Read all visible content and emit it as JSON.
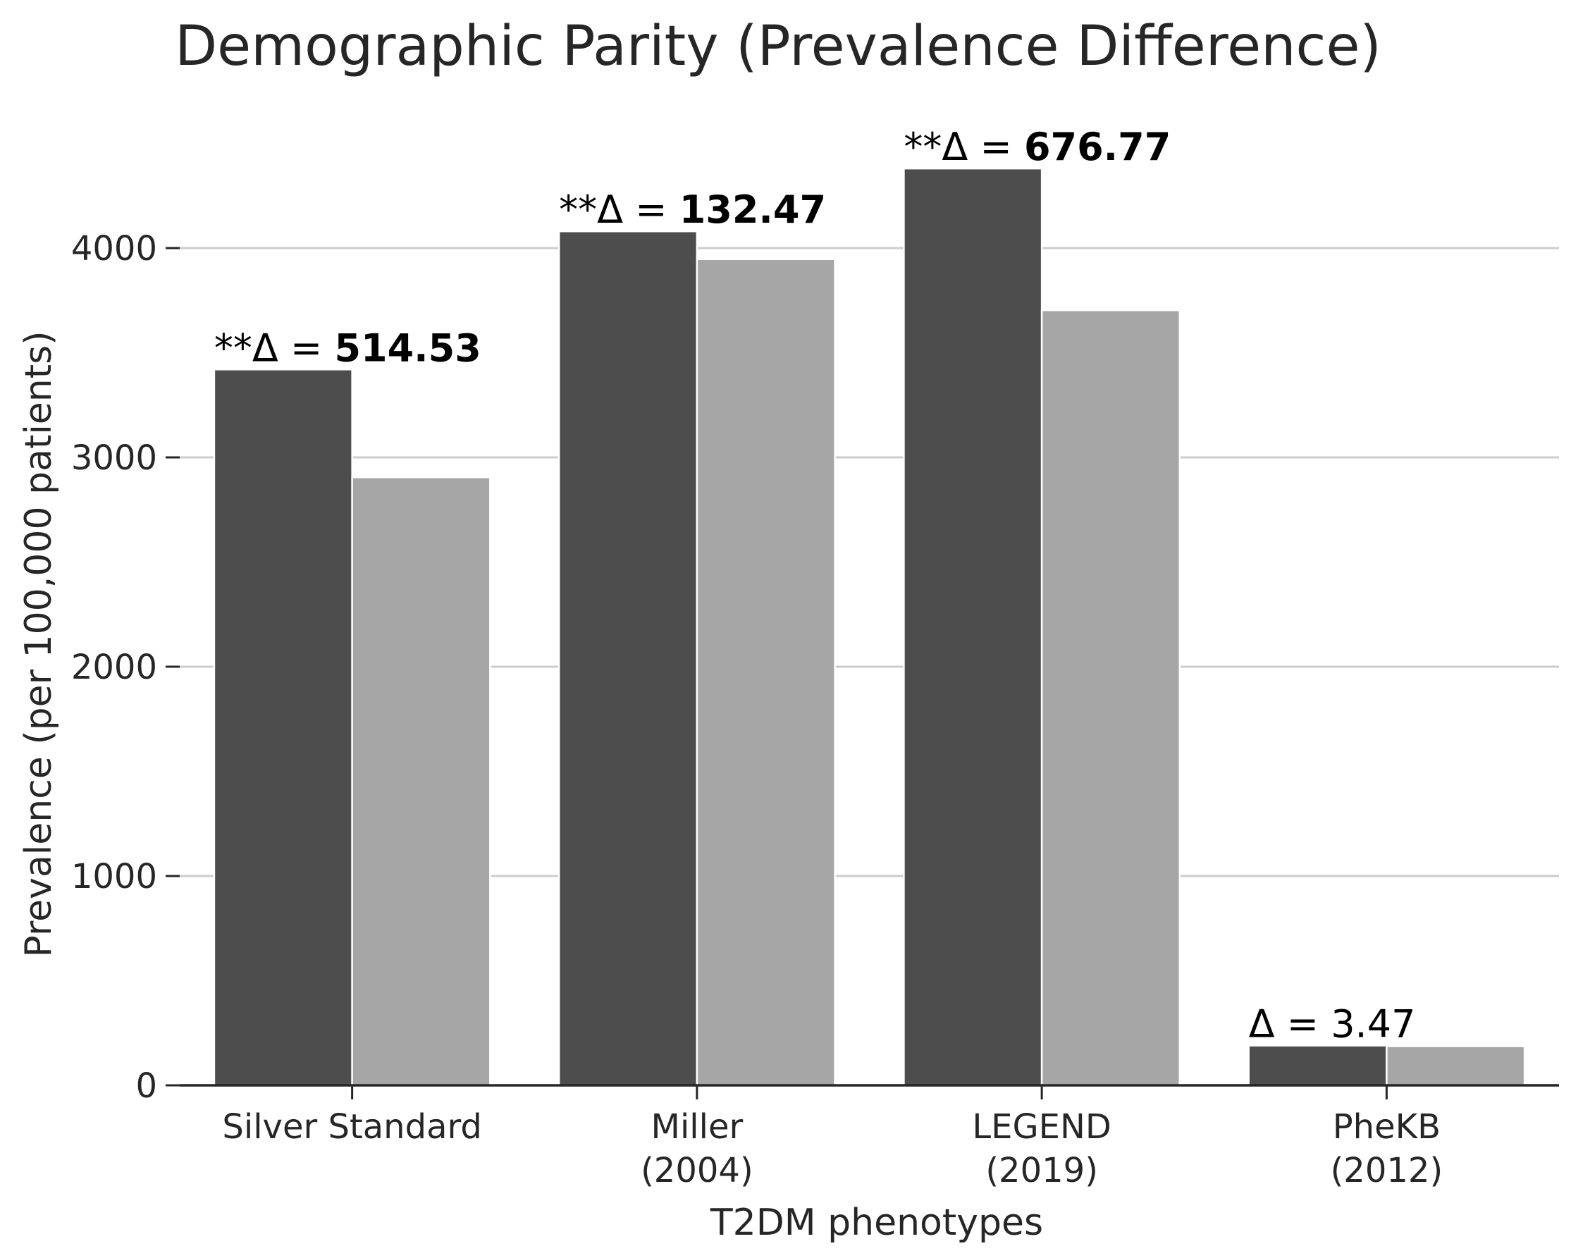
{
  "chart_data": {
    "type": "bar",
    "title": "Demographic Parity (Prevalence Difference)",
    "xlabel": "T2DM phenotypes",
    "ylabel": "Prevalence (per 100,000 patients)",
    "categories": [
      [
        "Silver Standard"
      ],
      [
        "Miller",
        "(2004)"
      ],
      [
        "LEGEND",
        "(2019)"
      ],
      [
        "PheKB",
        "(2012)"
      ]
    ],
    "series": [
      {
        "values": [
          3420,
          4080,
          4380,
          190
        ],
        "color": "#4d4d4d"
      },
      {
        "values": [
          2905,
          3947,
          3703,
          187
        ],
        "color": "#a6a6a6"
      }
    ],
    "ylim": [
      0,
      4500
    ],
    "yticks": [
      0,
      1000,
      2000,
      3000,
      4000
    ],
    "grid": "horizontal",
    "annotations": [
      {
        "prefix": "**Δ = ",
        "value": "514.53",
        "bold": true
      },
      {
        "prefix": "**Δ = ",
        "value": "132.47",
        "bold": true
      },
      {
        "prefix": "**Δ = ",
        "value": "676.77",
        "bold": true
      },
      {
        "prefix": "Δ = ",
        "value": "3.47",
        "bold": false
      }
    ]
  }
}
